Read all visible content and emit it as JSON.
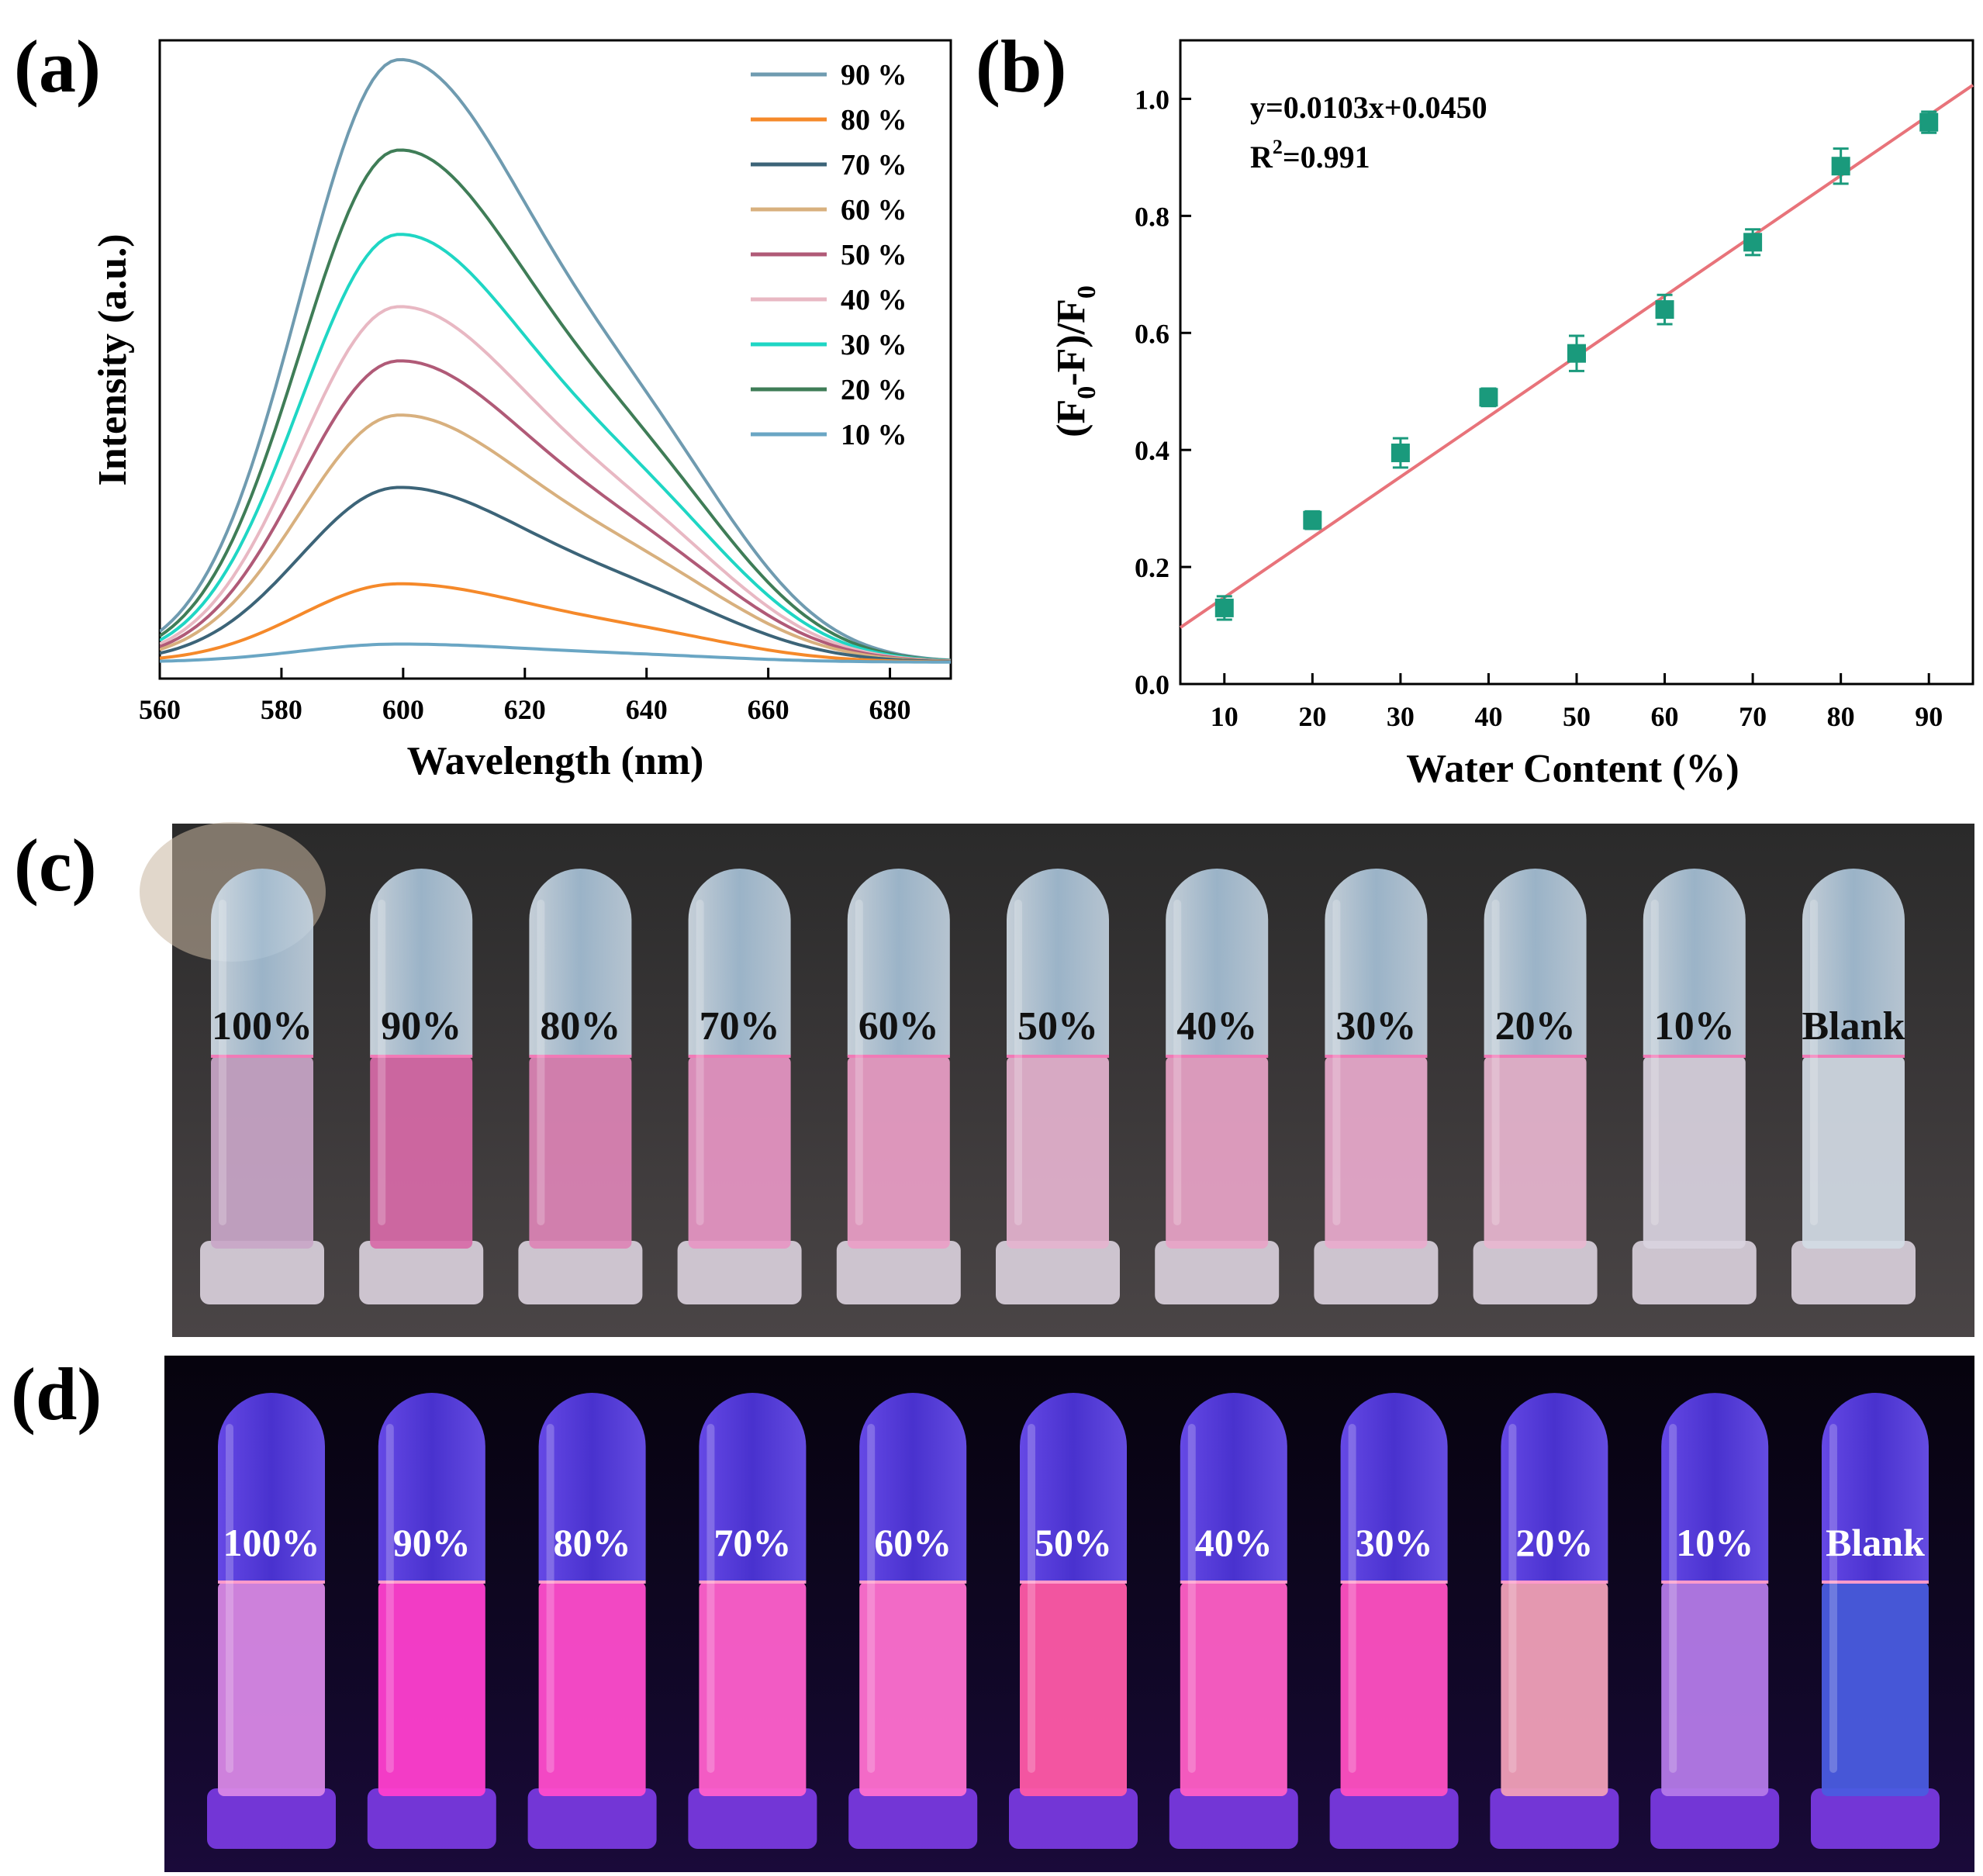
{
  "panels": {
    "a": "(a)",
    "b": "(b)",
    "c": "(c)",
    "d": "(d)"
  },
  "chart_data": [
    {
      "id": "a",
      "type": "line",
      "title": "",
      "xlabel": "Wavelength (nm)",
      "ylabel": "Intensity (a.u.)",
      "xlim": [
        560,
        690
      ],
      "ylim": [
        0,
        1.04
      ],
      "xticks": [
        "560",
        "580",
        "600",
        "620",
        "640",
        "660",
        "680"
      ],
      "xtick_values": [
        560,
        580,
        600,
        620,
        640,
        660,
        680
      ],
      "y_ticks_shown": false,
      "legend_position": "top-right",
      "peak_wavelength": 599,
      "series": [
        {
          "name": "90 %",
          "peak": 1.0,
          "color": "#6f9bb0"
        },
        {
          "name": "80 %",
          "peak": 0.13,
          "color": "#f5892a"
        },
        {
          "name": "70 %",
          "peak": 0.29,
          "color": "#3c6478"
        },
        {
          "name": "60 %",
          "peak": 0.41,
          "color": "#d8b07e"
        },
        {
          "name": "50 %",
          "peak": 0.5,
          "color": "#b05a77"
        },
        {
          "name": "40 %",
          "peak": 0.59,
          "color": "#e8b8c3"
        },
        {
          "name": "30 %",
          "peak": 0.71,
          "color": "#1fd6c4"
        },
        {
          "name": "20 %",
          "peak": 0.85,
          "color": "#3f7d57"
        },
        {
          "name": "10 %",
          "peak": 0.03,
          "color": "#6aa6c4"
        }
      ]
    },
    {
      "id": "b",
      "type": "scatter",
      "title": "",
      "xlabel": "Water Content (%)",
      "ylabel_main": "(F",
      "ylabel_sub0": "0",
      "ylabel_mid": "-F)/F",
      "ylabel_sub1": "0",
      "xlim": [
        5,
        95
      ],
      "ylim": [
        0.0,
        1.1
      ],
      "xticks": [
        "10",
        "20",
        "30",
        "40",
        "50",
        "60",
        "70",
        "80",
        "90"
      ],
      "xtick_values": [
        10,
        20,
        30,
        40,
        50,
        60,
        70,
        80,
        90
      ],
      "yticks": [
        "0.0",
        "0.2",
        "0.4",
        "0.6",
        "0.8",
        "1.0"
      ],
      "ytick_values": [
        0.0,
        0.2,
        0.4,
        0.6,
        0.8,
        1.0
      ],
      "x": [
        10,
        20,
        30,
        40,
        50,
        60,
        70,
        80,
        90
      ],
      "y": [
        0.13,
        0.28,
        0.395,
        0.49,
        0.565,
        0.64,
        0.755,
        0.885,
        0.96
      ],
      "yerr": [
        0.02,
        0.015,
        0.025,
        0.015,
        0.03,
        0.025,
        0.022,
        0.03,
        0.018
      ],
      "marker_color": "#1a9a7c",
      "fit": {
        "slope": 0.0103,
        "intercept": 0.045,
        "x_range": [
          5,
          95
        ],
        "color": "#e8737a"
      },
      "equation": "y=0.0103x+0.0450",
      "r2_prefix": "R",
      "r2_sup": "2",
      "r2_value": "=0.991"
    }
  ],
  "photo_c": {
    "labels": [
      "100%",
      "90%",
      "80%",
      "70%",
      "60%",
      "50%",
      "40%",
      "30%",
      "20%",
      "10%",
      "Blank"
    ],
    "liquid_colors": [
      "#c9a6c8",
      "#d86aa8",
      "#dd84b6",
      "#e796c4",
      "#ea9ec7",
      "#e5b3cf",
      "#e8a3c7",
      "#e9aacd",
      "#e8b6d0",
      "#d9d2e0",
      "#d3dbe5"
    ]
  },
  "photo_d": {
    "labels": [
      "100%",
      "90%",
      "80%",
      "70%",
      "60%",
      "50%",
      "40%",
      "30%",
      "20%",
      "10%",
      "Blank"
    ],
    "liquid_colors": [
      "#d888e6",
      "#ff3fcf",
      "#ff4ccc",
      "#ff60cc",
      "#ff70d0",
      "#ff5aa8",
      "#ff5fc6",
      "#ff50c2",
      "#f0a0b8",
      "#b47ae8",
      "#4a5ce0"
    ]
  }
}
